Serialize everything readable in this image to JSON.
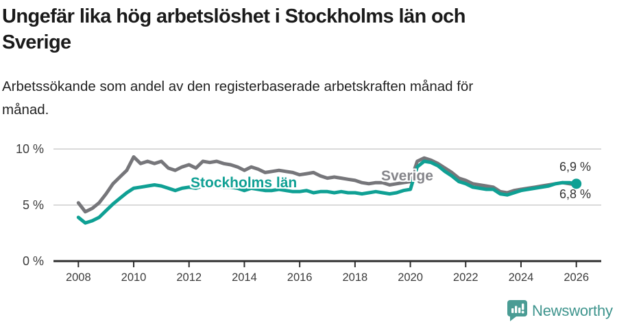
{
  "header": {
    "title_lines": [
      "Ungefär lika hög arbetslöshet i Stockholms län och",
      "Sverige"
    ],
    "subtitle_lines": [
      "Arbetssökande som andel av den registerbaserade arbetskraften månad för",
      "månad."
    ]
  },
  "chart_data": {
    "type": "line",
    "title": "Ungefär lika hög arbetslöshet i Stockholms län och Sverige",
    "subtitle": "Arbetssökande som andel av den registerbaserade arbetskraften månad för månad.",
    "x_unit": "year",
    "x_start_year": 2008,
    "x_step_years": 0.25,
    "xlim": [
      2007.1,
      2026.9
    ],
    "ylim": [
      0,
      11.3
    ],
    "grid": "horizontal",
    "legend_position": "inline-labels",
    "x_ticks": [
      2008,
      2010,
      2012,
      2014,
      2016,
      2018,
      2020,
      2022,
      2024,
      2026
    ],
    "y_ticks": [
      {
        "value": 0,
        "label": "0 %"
      },
      {
        "value": 5,
        "label": "5 %"
      },
      {
        "value": 10,
        "label": "10 %"
      }
    ],
    "series": [
      {
        "name": "Sverige",
        "color": "#76767a",
        "end_label": "6,8 %",
        "end_dot": false,
        "values": [
          5.2,
          4.4,
          4.7,
          5.2,
          6.0,
          6.9,
          7.5,
          8.1,
          9.3,
          8.7,
          8.9,
          8.7,
          8.9,
          8.3,
          8.1,
          8.4,
          8.6,
          8.3,
          8.9,
          8.8,
          8.9,
          8.7,
          8.6,
          8.4,
          8.1,
          8.4,
          8.2,
          7.9,
          8.0,
          8.1,
          8.0,
          7.9,
          7.7,
          7.8,
          7.9,
          7.6,
          7.4,
          7.5,
          7.4,
          7.3,
          7.2,
          7.0,
          6.9,
          7.0,
          7.0,
          6.8,
          6.9,
          7.0,
          7.1,
          8.9,
          9.2,
          9.0,
          8.7,
          8.3,
          7.9,
          7.4,
          7.2,
          6.9,
          6.8,
          6.7,
          6.6,
          6.2,
          6.1,
          6.3,
          6.4,
          6.5,
          6.6,
          6.7,
          6.8,
          6.9,
          7.0,
          6.9,
          6.8
        ]
      },
      {
        "name": "Stockholms län",
        "color": "#0fa094",
        "end_label": "6,9 %",
        "end_dot": true,
        "values": [
          3.9,
          3.4,
          3.6,
          3.9,
          4.5,
          5.1,
          5.6,
          6.1,
          6.5,
          6.6,
          6.7,
          6.8,
          6.7,
          6.5,
          6.3,
          6.5,
          6.6,
          6.5,
          6.7,
          6.7,
          6.7,
          6.6,
          6.6,
          6.5,
          6.3,
          6.5,
          6.4,
          6.3,
          6.3,
          6.4,
          6.3,
          6.2,
          6.2,
          6.3,
          6.1,
          6.2,
          6.2,
          6.1,
          6.2,
          6.1,
          6.1,
          6.0,
          6.1,
          6.2,
          6.1,
          6.0,
          6.1,
          6.3,
          6.4,
          8.4,
          8.9,
          8.8,
          8.5,
          8.0,
          7.6,
          7.1,
          6.9,
          6.6,
          6.5,
          6.4,
          6.4,
          6.0,
          5.9,
          6.1,
          6.3,
          6.4,
          6.5,
          6.6,
          6.7,
          6.9,
          7.0,
          7.0,
          6.9
        ]
      }
    ],
    "colors": {
      "gridline": "#dadada",
      "axis": "#2d2d2d",
      "tick_label": "#3b3b3b"
    }
  },
  "footer": {
    "brand": "Newsworthy",
    "brand_color": "#3e948d",
    "logo_icon": "bar-chart-speech-bubble-icon",
    "logo_color": "#4a9c94"
  }
}
